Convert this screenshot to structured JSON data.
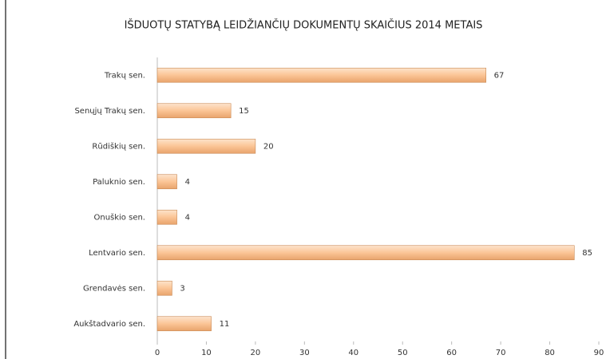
{
  "chart_data": {
    "type": "barh",
    "title": "IŠDUOTŲ STATYBĄ LEIDŽIANČIŲ DOKUMENTŲ SKAIČIUS  2014  METAIS",
    "categories": [
      "Trakų sen.",
      "Senųjų Trakų sen.",
      "Rūdiškių sen.",
      "Paluknio sen.",
      "Onuškio sen.",
      "Lentvario sen.",
      "Grendavės sen.",
      "Aukštadvario sen."
    ],
    "values": [
      67,
      15,
      20,
      4,
      4,
      85,
      3,
      11
    ],
    "color": "#fbc596",
    "xlim": [
      0,
      90
    ],
    "xticks": [
      0,
      10,
      20,
      30,
      40,
      50,
      60,
      70,
      80,
      90
    ],
    "grid": false
  }
}
